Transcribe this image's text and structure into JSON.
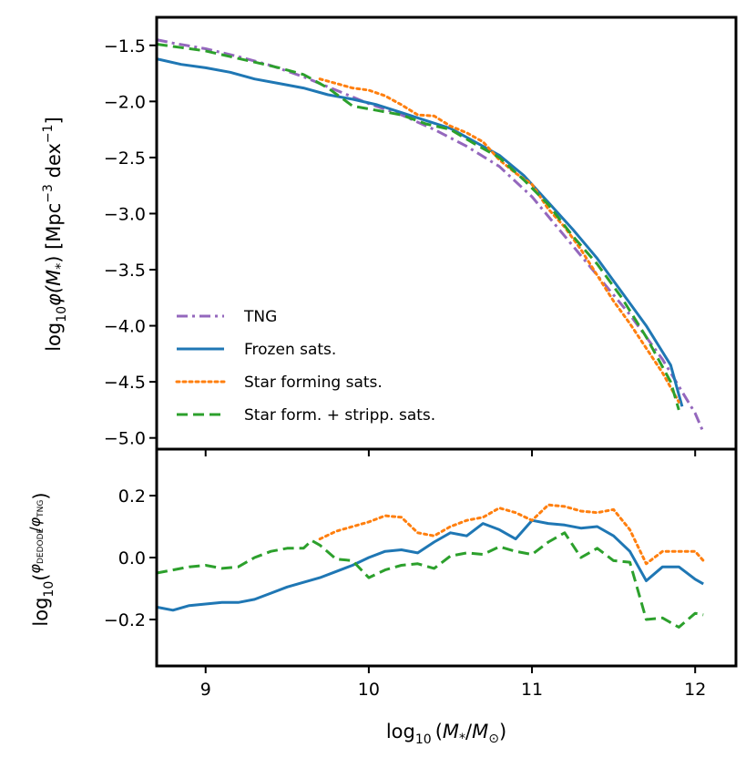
{
  "chart_data": [
    {
      "panel": "main",
      "type": "line",
      "title": "",
      "xlabel": "",
      "ylabel": "log10 φ(M*) [Mpc^-3 dex^-1]",
      "ylabel_parts": {
        "base": "log",
        "sub": "10",
        "phi": "φ(",
        "m": "M",
        "star": "*",
        "close": ")",
        "units_open": " [Mpc",
        "exp1": "−3",
        "dex": " dex",
        "exp2": "−1",
        "units_close": "]"
      },
      "xlim": [
        8.7,
        12.25
      ],
      "ylim": [
        -5.1,
        -1.25
      ],
      "x_ticks": [
        9,
        10,
        11,
        12
      ],
      "y_ticks": [
        -1.5,
        -2.0,
        -2.5,
        -3.0,
        -3.5,
        -4.0,
        -4.5,
        -5.0
      ],
      "y_tick_labels": [
        "−1.5",
        "−2.0",
        "−2.5",
        "−3.0",
        "−3.5",
        "−4.0",
        "−4.5",
        "−5.0"
      ],
      "legend": {
        "location": "lower-left",
        "entries": [
          "TNG",
          "Frozen sats.",
          "Star forming sats.",
          "Star form. + stripp. sats."
        ]
      },
      "series": [
        {
          "name": "TNG",
          "color": "#9467bd",
          "style": "dashdot",
          "x": [
            8.7,
            8.8,
            9.0,
            9.2,
            9.4,
            9.6,
            9.8,
            10.0,
            10.2,
            10.4,
            10.6,
            10.8,
            11.0,
            11.2,
            11.4,
            11.6,
            11.8,
            12.0,
            12.05
          ],
          "y": [
            -1.45,
            -1.48,
            -1.53,
            -1.6,
            -1.68,
            -1.78,
            -1.9,
            -2.02,
            -2.12,
            -2.25,
            -2.4,
            -2.58,
            -2.85,
            -3.2,
            -3.55,
            -3.9,
            -4.3,
            -4.78,
            -4.95
          ]
        },
        {
          "name": "Frozen sats.",
          "color": "#1f77b4",
          "style": "solid",
          "x": [
            8.7,
            8.85,
            9.0,
            9.15,
            9.3,
            9.45,
            9.6,
            9.75,
            9.9,
            10.05,
            10.2,
            10.35,
            10.5,
            10.65,
            10.8,
            10.95,
            11.1,
            11.25,
            11.4,
            11.55,
            11.7,
            11.85,
            11.92
          ],
          "y": [
            -1.62,
            -1.67,
            -1.7,
            -1.74,
            -1.8,
            -1.84,
            -1.88,
            -1.94,
            -1.98,
            -2.03,
            -2.1,
            -2.17,
            -2.24,
            -2.36,
            -2.48,
            -2.66,
            -2.9,
            -3.14,
            -3.4,
            -3.7,
            -4.0,
            -4.35,
            -4.72
          ]
        },
        {
          "name": "Star forming sats.",
          "color": "#ff7f0e",
          "style": "dotted",
          "x": [
            9.7,
            9.8,
            9.9,
            10.0,
            10.1,
            10.2,
            10.3,
            10.4,
            10.5,
            10.6,
            10.7,
            10.8,
            10.9,
            11.0,
            11.1,
            11.2,
            11.3,
            11.4,
            11.5,
            11.6,
            11.7,
            11.8,
            11.9
          ],
          "y": [
            -1.8,
            -1.84,
            -1.88,
            -1.9,
            -1.95,
            -2.03,
            -2.12,
            -2.13,
            -2.22,
            -2.28,
            -2.36,
            -2.52,
            -2.64,
            -2.74,
            -2.96,
            -3.12,
            -3.32,
            -3.55,
            -3.78,
            -3.98,
            -4.2,
            -4.42,
            -4.68
          ]
        },
        {
          "name": "Star form. + stripp. sats.",
          "color": "#2ca02c",
          "style": "dashed",
          "x": [
            8.7,
            8.85,
            9.0,
            9.15,
            9.3,
            9.45,
            9.6,
            9.75,
            9.9,
            10.05,
            10.2,
            10.35,
            10.5,
            10.65,
            10.8,
            10.95,
            11.1,
            11.25,
            11.4,
            11.55,
            11.7,
            11.85,
            11.9
          ],
          "y": [
            -1.49,
            -1.52,
            -1.55,
            -1.6,
            -1.65,
            -1.7,
            -1.76,
            -1.88,
            -2.04,
            -2.08,
            -2.12,
            -2.2,
            -2.25,
            -2.38,
            -2.5,
            -2.7,
            -2.92,
            -3.2,
            -3.45,
            -3.75,
            -4.1,
            -4.5,
            -4.75
          ]
        }
      ]
    },
    {
      "panel": "ratio",
      "type": "line",
      "title": "",
      "xlabel": "log10 (M*/M⊙)",
      "xlabel_parts": {
        "base": "log",
        "sub": "10",
        "open": "(",
        "m": "M",
        "star": "*",
        "slash": "/",
        "m2": "M",
        "sun": "⊙",
        "close": ")"
      },
      "ylabel": "log10 (φDEDODE / φTNG)",
      "ylabel_parts": {
        "base": "log",
        "sub": "10",
        "open": "(",
        "num": "φ",
        "num_sub": "DEDODE",
        "den": "φ",
        "den_sub": "TNG",
        "close": ")"
      },
      "xlim": [
        8.7,
        12.25
      ],
      "ylim": [
        -0.35,
        0.35
      ],
      "x_ticks": [
        9,
        10,
        11,
        12
      ],
      "x_tick_labels": [
        "9",
        "10",
        "11",
        "12"
      ],
      "y_ticks": [
        0.2,
        0.0,
        -0.2
      ],
      "y_tick_labels": [
        "0.2",
        "0.0",
        "−0.2"
      ],
      "series": [
        {
          "name": "Frozen sats.",
          "color": "#1f77b4",
          "style": "solid",
          "x": [
            8.7,
            8.8,
            8.9,
            9.0,
            9.1,
            9.2,
            9.3,
            9.4,
            9.5,
            9.6,
            9.7,
            9.8,
            9.9,
            10.0,
            10.1,
            10.2,
            10.3,
            10.4,
            10.5,
            10.6,
            10.7,
            10.8,
            10.9,
            11.0,
            11.1,
            11.2,
            11.3,
            11.4,
            11.5,
            11.6,
            11.7,
            11.8,
            11.9,
            12.0,
            12.05
          ],
          "y": [
            -0.16,
            -0.17,
            -0.155,
            -0.15,
            -0.145,
            -0.145,
            -0.135,
            -0.115,
            -0.095,
            -0.08,
            -0.065,
            -0.045,
            -0.025,
            0.0,
            0.02,
            0.025,
            0.015,
            0.05,
            0.08,
            0.07,
            0.11,
            0.09,
            0.06,
            0.12,
            0.11,
            0.105,
            0.095,
            0.1,
            0.07,
            0.02,
            -0.075,
            -0.03,
            -0.03,
            -0.07,
            -0.085
          ]
        },
        {
          "name": "Star forming sats.",
          "color": "#ff7f0e",
          "style": "dotted",
          "x": [
            9.7,
            9.8,
            9.9,
            10.0,
            10.1,
            10.2,
            10.3,
            10.4,
            10.5,
            10.6,
            10.7,
            10.8,
            10.9,
            11.0,
            11.1,
            11.2,
            11.3,
            11.4,
            11.5,
            11.6,
            11.7,
            11.8,
            11.9,
            12.0,
            12.05
          ],
          "y": [
            0.06,
            0.085,
            0.1,
            0.115,
            0.135,
            0.13,
            0.08,
            0.07,
            0.1,
            0.12,
            0.13,
            0.16,
            0.145,
            0.12,
            0.17,
            0.165,
            0.15,
            0.145,
            0.155,
            0.09,
            -0.02,
            0.02,
            0.02,
            0.02,
            -0.01
          ]
        },
        {
          "name": "Star form. + stripp. sats.",
          "color": "#2ca02c",
          "style": "dashed",
          "x": [
            8.7,
            8.8,
            8.9,
            9.0,
            9.1,
            9.2,
            9.3,
            9.4,
            9.5,
            9.6,
            9.65,
            9.7,
            9.8,
            9.9,
            10.0,
            10.1,
            10.2,
            10.3,
            10.4,
            10.5,
            10.6,
            10.7,
            10.8,
            10.9,
            11.0,
            11.1,
            11.2,
            11.3,
            11.4,
            11.5,
            11.6,
            11.7,
            11.8,
            11.9,
            12.0,
            12.05
          ],
          "y": [
            -0.05,
            -0.04,
            -0.03,
            -0.025,
            -0.035,
            -0.03,
            0.0,
            0.02,
            0.03,
            0.03,
            0.055,
            0.04,
            -0.005,
            -0.01,
            -0.065,
            -0.04,
            -0.025,
            -0.02,
            -0.035,
            0.005,
            0.015,
            0.01,
            0.035,
            0.02,
            0.01,
            0.05,
            0.08,
            0.0,
            0.03,
            -0.01,
            -0.015,
            -0.2,
            -0.195,
            -0.225,
            -0.18,
            -0.185
          ]
        }
      ]
    }
  ]
}
